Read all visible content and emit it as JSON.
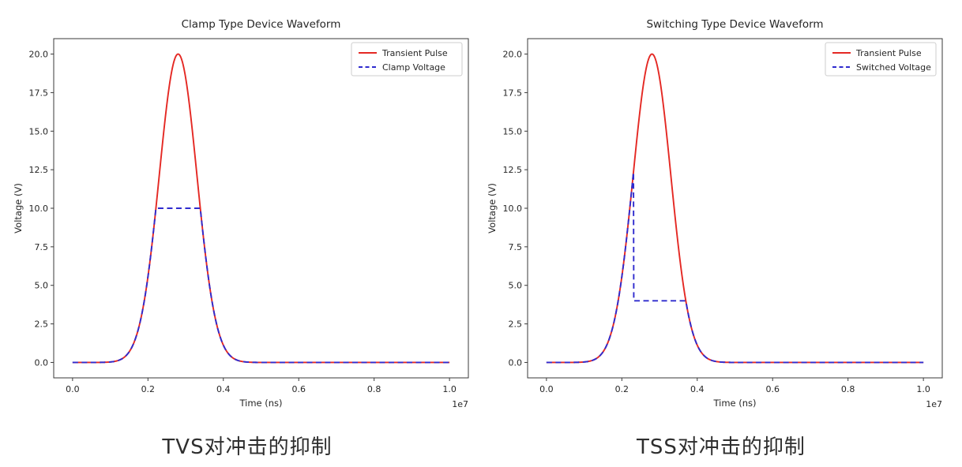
{
  "figures": [
    {
      "caption": "TVS对冲击的抑制"
    },
    {
      "caption": "TSS对冲击的抑制"
    }
  ],
  "colors": {
    "transient_pulse": "#e42823",
    "device_voltage": "#2f2bce",
    "axis": "#3a3a3a",
    "text": "#262626",
    "legend_border": "#cccccc",
    "background": "#ffffff"
  },
  "chart_data": [
    {
      "type": "line",
      "title": "Clamp Type Device Waveform",
      "xlabel": "Time (ns)",
      "ylabel": "Voltage (V)",
      "x_offset_text": "1e7",
      "xlim": [
        -500000,
        10500000
      ],
      "ylim": [
        -1,
        21
      ],
      "x_ticks": [
        0,
        2000000,
        4000000,
        6000000,
        8000000,
        10000000
      ],
      "x_tick_labels": [
        "0.0",
        "0.2",
        "0.4",
        "0.6",
        "0.8",
        "1.0"
      ],
      "y_ticks": [
        0,
        2.5,
        5,
        7.5,
        10,
        12.5,
        15,
        17.5,
        20
      ],
      "y_tick_labels": [
        "0.0",
        "2.5",
        "5.0",
        "7.5",
        "10.0",
        "12.5",
        "15.0",
        "17.5",
        "20.0"
      ],
      "grid": false,
      "legend_position": "upper right",
      "series": [
        {
          "name": "Transient Pulse",
          "role": "pulse",
          "style": "solid"
        },
        {
          "name": "Clamp Voltage",
          "role": "device",
          "style": "dashed"
        }
      ],
      "pulse": {
        "shape": "gaussian",
        "peak_voltage": 20,
        "center_time": 2800000,
        "sigma": 500000,
        "baseline": 0,
        "t_start": 0,
        "t_end": 10000000
      },
      "device_response": {
        "mode": "clamp",
        "clamp_voltage": 10
      }
    },
    {
      "type": "line",
      "title": "Switching Type Device Waveform",
      "xlabel": "Time (ns)",
      "ylabel": "Voltage (V)",
      "x_offset_text": "1e7",
      "xlim": [
        -500000,
        10500000
      ],
      "ylim": [
        -1,
        21
      ],
      "x_ticks": [
        0,
        2000000,
        4000000,
        6000000,
        8000000,
        10000000
      ],
      "x_tick_labels": [
        "0.0",
        "0.2",
        "0.4",
        "0.6",
        "0.8",
        "1.0"
      ],
      "y_ticks": [
        0,
        2.5,
        5,
        7.5,
        10,
        12.5,
        15,
        17.5,
        20
      ],
      "y_tick_labels": [
        "0.0",
        "2.5",
        "5.0",
        "7.5",
        "10.0",
        "12.5",
        "15.0",
        "17.5",
        "20.0"
      ],
      "grid": false,
      "legend_position": "upper right",
      "series": [
        {
          "name": "Transient Pulse",
          "role": "pulse",
          "style": "solid"
        },
        {
          "name": "Switched Voltage",
          "role": "device",
          "style": "dashed"
        }
      ],
      "pulse": {
        "shape": "gaussian",
        "peak_voltage": 20,
        "center_time": 2800000,
        "sigma": 500000,
        "baseline": 0,
        "t_start": 0,
        "t_end": 10000000
      },
      "device_response": {
        "mode": "switch",
        "trigger_voltage": 12.5,
        "holding_voltage": 4
      }
    }
  ]
}
